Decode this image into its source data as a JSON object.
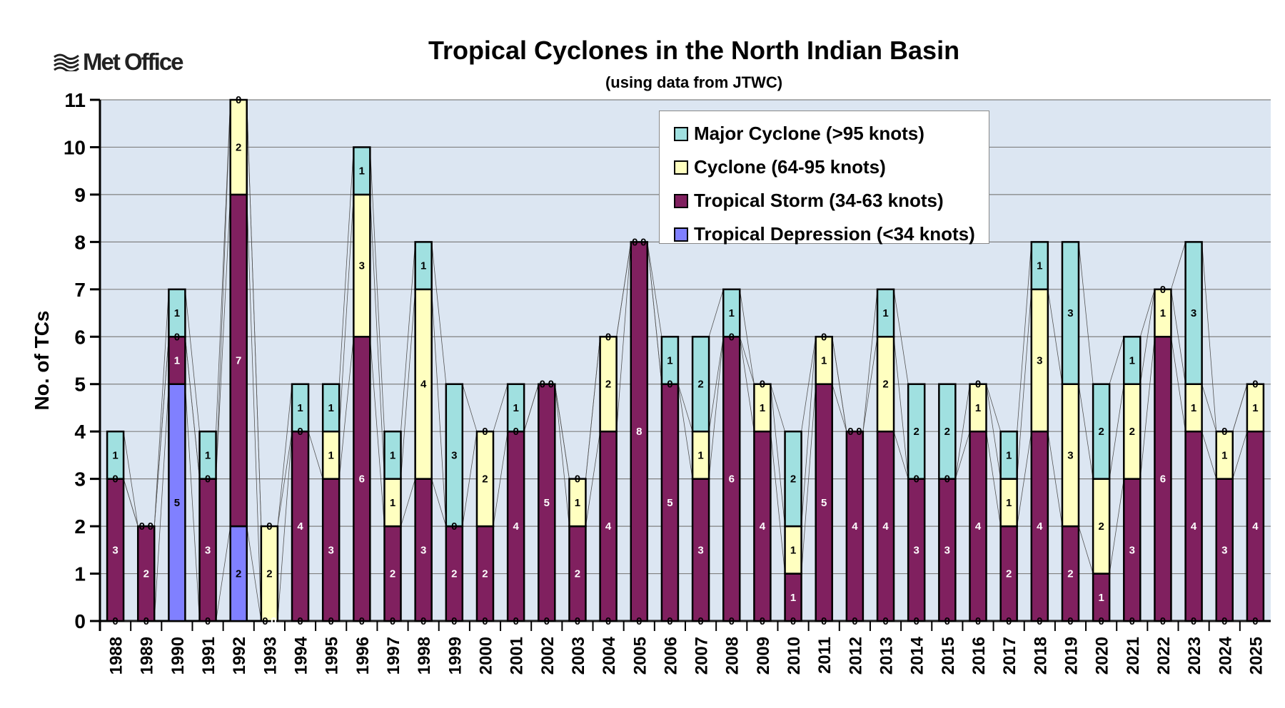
{
  "logo": {
    "text": "Met Office",
    "icon": "met-office-waves-icon"
  },
  "chart_data": {
    "type": "bar",
    "stacked": true,
    "title": "Tropical Cyclones in the North Indian Basin",
    "subtitle": "(using data from JTWC)",
    "xlabel": "",
    "ylabel": "No. of TCs",
    "ylim": [
      0,
      11
    ],
    "yticks": [
      0,
      1,
      2,
      3,
      4,
      5,
      6,
      7,
      8,
      9,
      10,
      11
    ],
    "grid": true,
    "legend_position": "top-right",
    "categories": [
      "1988",
      "1989",
      "1990",
      "1991",
      "1992",
      "1993",
      "1994",
      "1995",
      "1996",
      "1997",
      "1998",
      "1999",
      "2000",
      "2001",
      "2002",
      "2003",
      "2004",
      "2005",
      "2006",
      "2007",
      "2008",
      "2009",
      "2010",
      "2011",
      "2012",
      "2013",
      "2014",
      "2015",
      "2016",
      "2017",
      "2018",
      "2019",
      "2020",
      "2021",
      "2022",
      "2023",
      "2024",
      "2025"
    ],
    "series": [
      {
        "name": "Tropical Depression (<34 knots)",
        "color": "#8080ff",
        "label_color": "#000000",
        "values": [
          0,
          0,
          5,
          0,
          2,
          0,
          0,
          0,
          0,
          0,
          0,
          0,
          0,
          0,
          0,
          0,
          0,
          0,
          0,
          0,
          0,
          0,
          0,
          0,
          0,
          0,
          0,
          0,
          0,
          0,
          0,
          0,
          0,
          0,
          0,
          0,
          0,
          0
        ]
      },
      {
        "name": "Tropical Storm (34-63 knots)",
        "color": "#80205f",
        "label_color": "#ffffff",
        "values": [
          3,
          2,
          1,
          3,
          7,
          0,
          4,
          3,
          6,
          2,
          3,
          2,
          2,
          4,
          5,
          2,
          4,
          8,
          5,
          3,
          6,
          4,
          1,
          5,
          4,
          4,
          3,
          3,
          4,
          2,
          4,
          2,
          1,
          3,
          6,
          4,
          3,
          4
        ]
      },
      {
        "name": "Cyclone (64-95 knots)",
        "color": "#ffffc0",
        "label_color": "#000000",
        "values": [
          0,
          0,
          0,
          0,
          2,
          2,
          0,
          1,
          3,
          1,
          4,
          0,
          2,
          0,
          0,
          1,
          2,
          0,
          0,
          1,
          0,
          1,
          1,
          1,
          0,
          2,
          0,
          0,
          1,
          1,
          3,
          3,
          2,
          2,
          1,
          1,
          1,
          1
        ]
      },
      {
        "name": "Major Cyclone (>95 knots)",
        "color": "#a0e0e0",
        "label_color": "#000000",
        "values": [
          1,
          0,
          1,
          1,
          0,
          0,
          1,
          1,
          1,
          1,
          1,
          3,
          0,
          1,
          0,
          0,
          0,
          0,
          1,
          2,
          1,
          0,
          2,
          0,
          0,
          1,
          2,
          2,
          0,
          1,
          1,
          3,
          2,
          1,
          0,
          3,
          0,
          0
        ]
      }
    ],
    "plot_background": "#dce6f2"
  }
}
